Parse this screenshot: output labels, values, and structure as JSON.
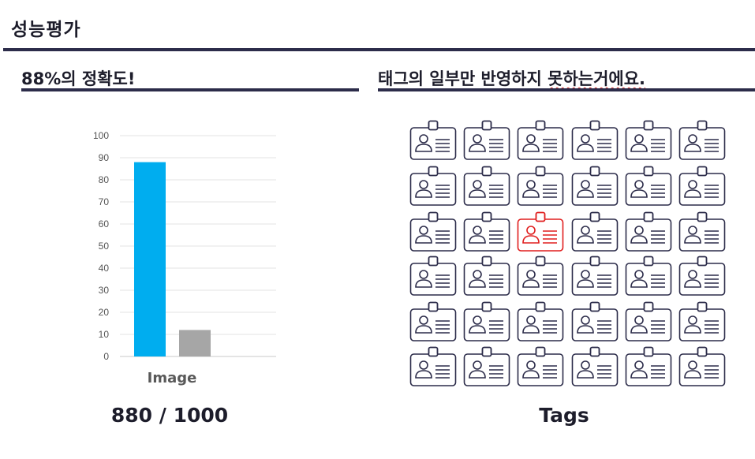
{
  "page": {
    "title": "성능평가"
  },
  "left_section": {
    "heading": "88%의 정확도!",
    "caption": "880 / 1000"
  },
  "right_section": {
    "heading_main": "태그의 일부만 반영하지 ",
    "heading_underlined": "못하는거에요.",
    "caption": "Tags",
    "grid_rows": 6,
    "grid_cols": 6,
    "highlighted_cell": [
      2,
      2
    ],
    "badge_icon": "id-badge-icon",
    "badge_color": "#2c2c4a",
    "highlight_color": "#e01e1e"
  },
  "chart_data": {
    "type": "bar",
    "categories": [
      "Image",
      ""
    ],
    "values": [
      88,
      12
    ],
    "bar_colors": [
      "#00adef",
      "#a6a6a6"
    ],
    "ylim": [
      0,
      100
    ],
    "yticks": [
      0,
      10,
      20,
      30,
      40,
      50,
      60,
      70,
      80,
      90,
      100
    ],
    "grid": true,
    "xlabel": "Image"
  }
}
